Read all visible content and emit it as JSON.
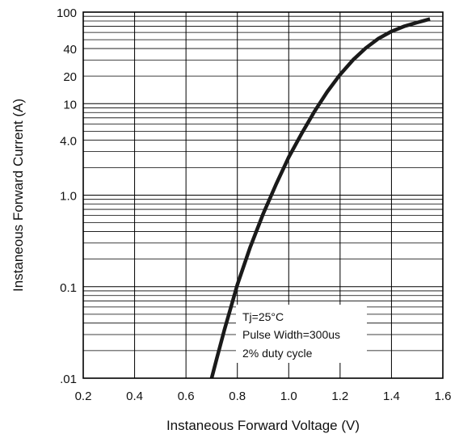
{
  "chart_data": {
    "type": "line",
    "title": "",
    "xlabel": "Instaneous Forward Voltage (V)",
    "ylabel": "Instaneous Forward Current (A)",
    "x_scale": "linear",
    "y_scale": "log",
    "xlim": [
      0.2,
      1.6
    ],
    "ylim": [
      0.01,
      100
    ],
    "x_ticks": [
      {
        "value": 0.2,
        "label": "0.2"
      },
      {
        "value": 0.4,
        "label": "0.4"
      },
      {
        "value": 0.6,
        "label": "0.6"
      },
      {
        "value": 0.8,
        "label": "0.8"
      },
      {
        "value": 1.0,
        "label": "1.0"
      },
      {
        "value": 1.2,
        "label": "1.2"
      },
      {
        "value": 1.4,
        "label": "1.4"
      },
      {
        "value": 1.6,
        "label": "1.6"
      }
    ],
    "y_ticks": [
      {
        "value": 0.01,
        "label": ".01"
      },
      {
        "value": 0.1,
        "label": "0.1"
      },
      {
        "value": 1.0,
        "label": "1.0"
      },
      {
        "value": 4.0,
        "label": "4.0"
      },
      {
        "value": 10,
        "label": "10"
      },
      {
        "value": 20,
        "label": "20"
      },
      {
        "value": 40,
        "label": "40"
      },
      {
        "value": 100,
        "label": "100"
      }
    ],
    "grid": true,
    "series": [
      {
        "x": [
          0.7,
          0.72,
          0.75,
          0.78,
          0.8,
          0.85,
          0.9,
          0.95,
          1.0,
          1.05,
          1.1,
          1.15,
          1.2,
          1.25,
          1.3,
          1.35,
          1.4,
          1.45,
          1.5,
          1.55
        ],
        "y": [
          0.01,
          0.0165,
          0.034,
          0.067,
          0.105,
          0.27,
          0.62,
          1.3,
          2.6,
          4.7,
          8.2,
          13.5,
          20.8,
          30,
          40.5,
          51.5,
          61.5,
          70,
          77,
          84
        ]
      }
    ],
    "annotation": {
      "lines": [
        "Tj=25°C",
        "Pulse Width=300us",
        "2% duty cycle"
      ]
    }
  }
}
